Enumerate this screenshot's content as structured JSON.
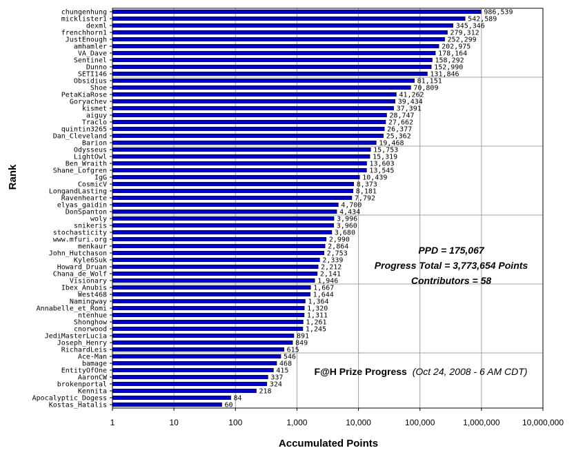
{
  "chart_data": {
    "type": "bar",
    "orientation": "horizontal",
    "x_scale": "log",
    "xlim": [
      1,
      10000000
    ],
    "xlabel": "Accumulated Points",
    "ylabel": "Rank",
    "x_ticks": [
      "1",
      "10",
      "100",
      "1,000",
      "10,000",
      "100,000",
      "1,000,000",
      "10,000,000"
    ],
    "grid": "vertical and every 10 rows",
    "bar_color": "#0000cc",
    "categories": [
      "chungenhung",
      "micklister1",
      "dexml",
      "frenchhorn1",
      "JustEnough",
      "amhamler",
      "VA_Dave",
      "Sentinel",
      "Dunno",
      "SETI146",
      "Obsidius",
      "Shoe",
      "PetaKiaRose",
      "Goryachev",
      "kismet",
      "aiguy",
      "Traclo",
      "quintin3265",
      "Dan_Cleveland",
      "Barion",
      "Odysseus",
      "LightOwl",
      "Ben_Wraith",
      "Shane_Lofgren",
      "IgG",
      "CosmicV",
      "LongandLasting",
      "Ravenhearte",
      "elyas_gaidin",
      "DonSpanton",
      "woly",
      "snikeris",
      "stochasticity",
      "www.mfuri.org",
      "menkaur",
      "John_Hutchason",
      "Kyle6Suk",
      "Howard_Druan",
      "Chana_de_Wolf",
      "Visionary",
      "Ibex_Anubis",
      "West468",
      "Namingway",
      "Annabelle_et_Romi",
      "ntenhue",
      "Shonghow",
      "cnorwood",
      "JediMasterLucia",
      "Joseph_Henry",
      "RichardLeis",
      "Ace-Man",
      "bamage",
      "EntityOfOne",
      "AaronCW",
      "brokenportal",
      "Kennita",
      "Apocalyptic_Dogess",
      "Kostas_Hatalis"
    ],
    "values": [
      986539,
      542589,
      345346,
      279312,
      252299,
      202975,
      178164,
      158292,
      152990,
      131846,
      81151,
      70809,
      41262,
      39434,
      37391,
      28747,
      27662,
      26377,
      25362,
      19468,
      15753,
      15319,
      13603,
      13545,
      10439,
      8373,
      8181,
      7792,
      4700,
      4434,
      3996,
      3960,
      3680,
      2990,
      2864,
      2753,
      2339,
      2212,
      2141,
      1946,
      1667,
      1644,
      1364,
      1320,
      1311,
      1261,
      1245,
      891,
      849,
      615,
      546,
      468,
      415,
      337,
      324,
      218,
      84,
      60
    ],
    "value_labels": [
      "986,539",
      "542,589",
      "345,346",
      "279,312",
      "252,299",
      "202,975",
      "178,164",
      "158,292",
      "152,990",
      "131,846",
      "81,151",
      "70,809",
      "41,262",
      "39,434",
      "37,391",
      "28,747",
      "27,662",
      "26,377",
      "25,362",
      "19,468",
      "15,753",
      "15,319",
      "13,603",
      "13,545",
      "10,439",
      "8,373",
      "8,181",
      "7,792",
      "4,700",
      "4,434",
      "3,996",
      "3,960",
      "3,680",
      "2,990",
      "2,864",
      "2,753",
      "2,339",
      "2,212",
      "2,141",
      "1,946",
      "1,667",
      "1,644",
      "1,364",
      "1,320",
      "1,311",
      "1,261",
      "1,245",
      "891",
      "849",
      "615",
      "546",
      "468",
      "415",
      "337",
      "324",
      "218",
      "84",
      "60"
    ],
    "annotations": {
      "ppd": "PPD = 175,067",
      "progress_total": "Progress Total = 3,773,654 Points",
      "contributors": "Contributors = 58",
      "title_main": "F@H Prize Progress",
      "title_date": "(Oct 24, 2008 - 6 AM CDT)"
    }
  }
}
